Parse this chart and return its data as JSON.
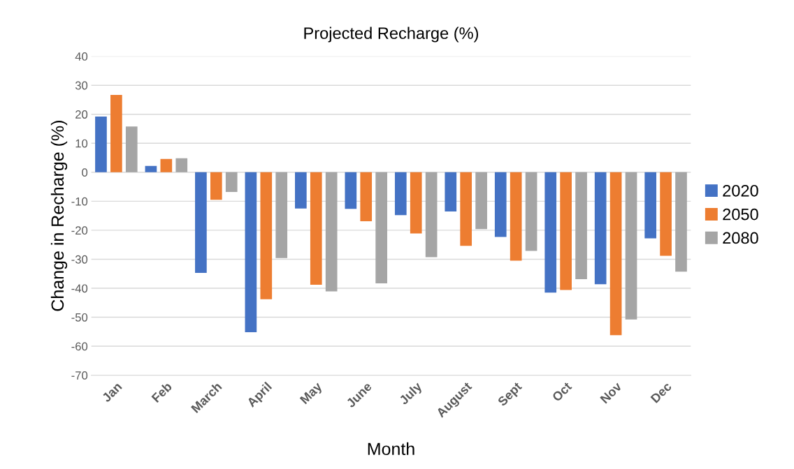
{
  "chart_data": {
    "type": "bar",
    "title": "Projected Recharge (%)",
    "xlabel": "Month",
    "ylabel": "Change in Recharge (%)",
    "categories": [
      "Jan",
      "Feb",
      "March",
      "April",
      "May",
      "June",
      "July",
      "August",
      "Sept",
      "Oct",
      "Nov",
      "Dec"
    ],
    "series": [
      {
        "name": "2020",
        "color": "#4472c4",
        "values": [
          19.2,
          2.2,
          -34.7,
          -55.2,
          -12.5,
          -12.6,
          -14.8,
          -13.5,
          -22.3,
          -41.5,
          -38.6,
          -22.8
        ]
      },
      {
        "name": "2050",
        "color": "#ed7d31",
        "values": [
          26.7,
          4.6,
          -9.5,
          -43.8,
          -38.8,
          -16.9,
          -21.1,
          -25.4,
          -30.5,
          -40.6,
          -56.2,
          -28.8
        ]
      },
      {
        "name": "2080",
        "color": "#a5a5a5",
        "values": [
          15.8,
          4.8,
          -6.8,
          -29.6,
          -41.1,
          -38.3,
          -29.3,
          -19.6,
          -27.1,
          -36.9,
          -50.8,
          -34.3
        ]
      }
    ],
    "ylim": [
      -70,
      40
    ],
    "yticks": [
      -70,
      -60,
      -50,
      -40,
      -30,
      -20,
      -10,
      0,
      10,
      20,
      30,
      40
    ],
    "grid": "y",
    "legend": "right"
  }
}
